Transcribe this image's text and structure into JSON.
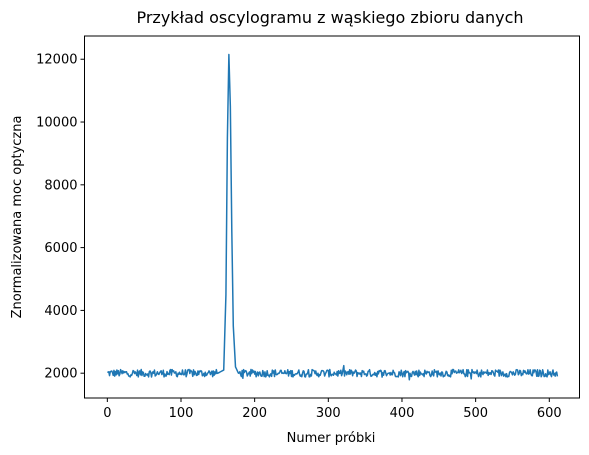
{
  "chart_data": {
    "type": "line",
    "title": "Przykład oscylogramu z wąskiego zbioru danych",
    "xlabel": "Numer próbki",
    "ylabel": "Znormalizowana moc optyczna",
    "xlim": [
      -31,
      641
    ],
    "ylim": [
      1210,
      12740
    ],
    "xticks": [
      0,
      100,
      200,
      300,
      400,
      500,
      600
    ],
    "yticks": [
      2000,
      4000,
      6000,
      8000,
      10000,
      12000
    ],
    "grid": false,
    "series": [
      {
        "color": "#1f77b4",
        "baseline": 2000,
        "noise_amplitude": 120,
        "peak": {
          "x": [
            150,
            158,
            161,
            163,
            165,
            167,
            169,
            171,
            174,
            178
          ],
          "y": [
            2000,
            2100,
            4500,
            9500,
            12150,
            10500,
            6500,
            3500,
            2200,
            2000
          ]
        },
        "x_start": 0,
        "x_end": 611,
        "end_value": 1900
      }
    ]
  }
}
